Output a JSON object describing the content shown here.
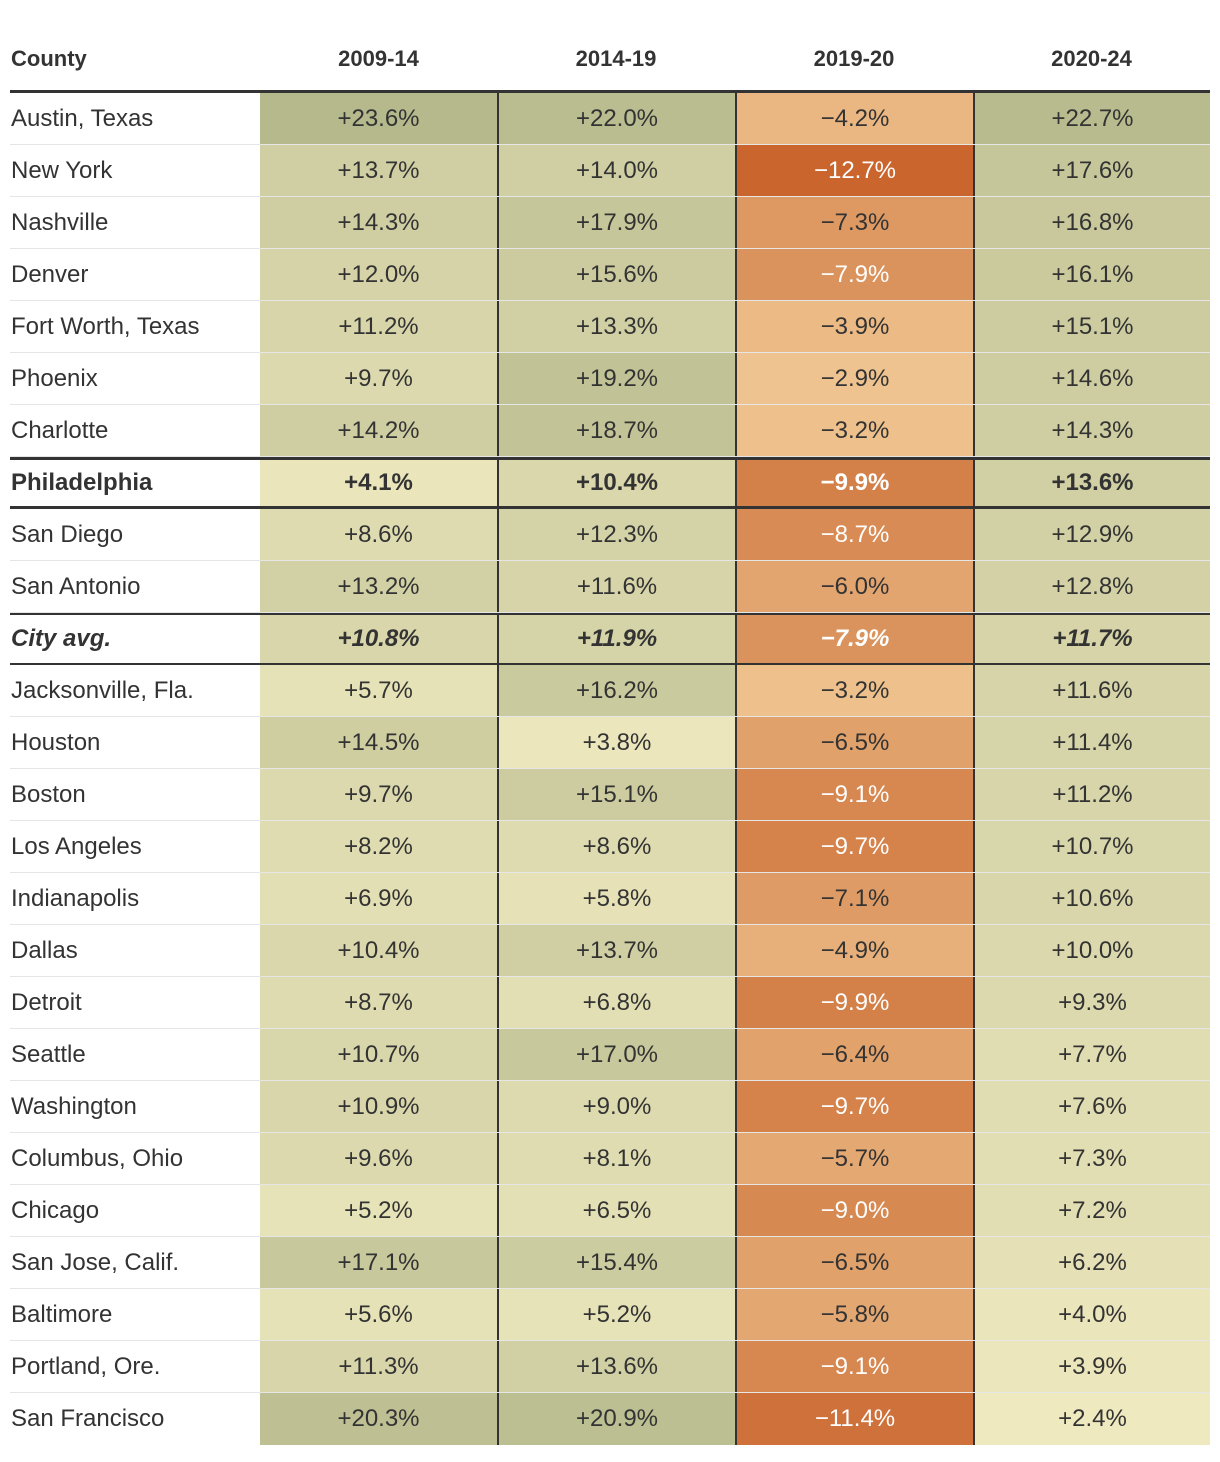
{
  "chart_data": {
    "type": "table",
    "columns": [
      "County",
      "2009-14",
      "2014-19",
      "2019-20",
      "2020-24"
    ],
    "rows": [
      {
        "name": "Austin, Texas",
        "values": [
          "+23.6%",
          "+22.0%",
          "−4.2%",
          "+22.7%"
        ],
        "numeric": [
          23.6,
          22.0,
          -4.2,
          22.7
        ]
      },
      {
        "name": "New York",
        "values": [
          "+13.7%",
          "+14.0%",
          "−12.7%",
          "+17.6%"
        ],
        "numeric": [
          13.7,
          14.0,
          -12.7,
          17.6
        ]
      },
      {
        "name": "Nashville",
        "values": [
          "+14.3%",
          "+17.9%",
          "−7.3%",
          "+16.8%"
        ],
        "numeric": [
          14.3,
          17.9,
          -7.3,
          16.8
        ]
      },
      {
        "name": "Denver",
        "values": [
          "+12.0%",
          "+15.6%",
          "−7.9%",
          "+16.1%"
        ],
        "numeric": [
          12.0,
          15.6,
          -7.9,
          16.1
        ]
      },
      {
        "name": "Fort Worth, Texas",
        "values": [
          "+11.2%",
          "+13.3%",
          "−3.9%",
          "+15.1%"
        ],
        "numeric": [
          11.2,
          13.3,
          -3.9,
          15.1
        ]
      },
      {
        "name": "Phoenix",
        "values": [
          "+9.7%",
          "+19.2%",
          "−2.9%",
          "+14.6%"
        ],
        "numeric": [
          9.7,
          19.2,
          -2.9,
          14.6
        ]
      },
      {
        "name": "Charlotte",
        "values": [
          "+14.2%",
          "+18.7%",
          "−3.2%",
          "+14.3%"
        ],
        "numeric": [
          14.2,
          18.7,
          -3.2,
          14.3
        ]
      },
      {
        "name": "Philadelphia",
        "values": [
          "+4.1%",
          "+10.4%",
          "−9.9%",
          "+13.6%"
        ],
        "numeric": [
          4.1,
          10.4,
          -9.9,
          13.6
        ],
        "style": "bold"
      },
      {
        "name": "San Diego",
        "values": [
          "+8.6%",
          "+12.3%",
          "−8.7%",
          "+12.9%"
        ],
        "numeric": [
          8.6,
          12.3,
          -8.7,
          12.9
        ]
      },
      {
        "name": "San Antonio",
        "values": [
          "+13.2%",
          "+11.6%",
          "−6.0%",
          "+12.8%"
        ],
        "numeric": [
          13.2,
          11.6,
          -6.0,
          12.8
        ]
      },
      {
        "name": "City avg.",
        "values": [
          "+10.8%",
          "+11.9%",
          "−7.9%",
          "+11.7%"
        ],
        "numeric": [
          10.8,
          11.9,
          -7.9,
          11.7
        ],
        "style": "italic"
      },
      {
        "name": "Jacksonville, Fla.",
        "values": [
          "+5.7%",
          "+16.2%",
          "−3.2%",
          "+11.6%"
        ],
        "numeric": [
          5.7,
          16.2,
          -3.2,
          11.6
        ]
      },
      {
        "name": "Houston",
        "values": [
          "+14.5%",
          "+3.8%",
          "−6.5%",
          "+11.4%"
        ],
        "numeric": [
          14.5,
          3.8,
          -6.5,
          11.4
        ]
      },
      {
        "name": "Boston",
        "values": [
          "+9.7%",
          "+15.1%",
          "−9.1%",
          "+11.2%"
        ],
        "numeric": [
          9.7,
          15.1,
          -9.1,
          11.2
        ]
      },
      {
        "name": "Los Angeles",
        "values": [
          "+8.2%",
          "+8.6%",
          "−9.7%",
          "+10.7%"
        ],
        "numeric": [
          8.2,
          8.6,
          -9.7,
          10.7
        ]
      },
      {
        "name": "Indianapolis",
        "values": [
          "+6.9%",
          "+5.8%",
          "−7.1%",
          "+10.6%"
        ],
        "numeric": [
          6.9,
          5.8,
          -7.1,
          10.6
        ]
      },
      {
        "name": "Dallas",
        "values": [
          "+10.4%",
          "+13.7%",
          "−4.9%",
          "+10.0%"
        ],
        "numeric": [
          10.4,
          13.7,
          -4.9,
          10.0
        ]
      },
      {
        "name": "Detroit",
        "values": [
          "+8.7%",
          "+6.8%",
          "−9.9%",
          "+9.3%"
        ],
        "numeric": [
          8.7,
          6.8,
          -9.9,
          9.3
        ]
      },
      {
        "name": "Seattle",
        "values": [
          "+10.7%",
          "+17.0%",
          "−6.4%",
          "+7.7%"
        ],
        "numeric": [
          10.7,
          17.0,
          -6.4,
          7.7
        ]
      },
      {
        "name": "Washington",
        "values": [
          "+10.9%",
          "+9.0%",
          "−9.7%",
          "+7.6%"
        ],
        "numeric": [
          10.9,
          9.0,
          -9.7,
          7.6
        ]
      },
      {
        "name": "Columbus, Ohio",
        "values": [
          "+9.6%",
          "+8.1%",
          "−5.7%",
          "+7.3%"
        ],
        "numeric": [
          9.6,
          8.1,
          -5.7,
          7.3
        ]
      },
      {
        "name": "Chicago",
        "values": [
          "+5.2%",
          "+6.5%",
          "−9.0%",
          "+7.2%"
        ],
        "numeric": [
          5.2,
          6.5,
          -9.0,
          7.2
        ]
      },
      {
        "name": "San Jose, Calif.",
        "values": [
          "+17.1%",
          "+15.4%",
          "−6.5%",
          "+6.2%"
        ],
        "numeric": [
          17.1,
          15.4,
          -6.5,
          6.2
        ]
      },
      {
        "name": "Baltimore",
        "values": [
          "+5.6%",
          "+5.2%",
          "−5.8%",
          "+4.0%"
        ],
        "numeric": [
          5.6,
          5.2,
          -5.8,
          4.0
        ]
      },
      {
        "name": "Portland, Ore.",
        "values": [
          "+11.3%",
          "+13.6%",
          "−9.1%",
          "+3.9%"
        ],
        "numeric": [
          11.3,
          13.6,
          -9.1,
          3.9
        ]
      },
      {
        "name": "San Francisco",
        "values": [
          "+20.3%",
          "+20.9%",
          "−11.4%",
          "+2.4%"
        ],
        "numeric": [
          20.3,
          20.9,
          -11.4,
          2.4
        ]
      }
    ],
    "color_scale": {
      "positive_low": "#f0eac0",
      "positive_high": "#b4b88a",
      "negative_low": "#f2cc98",
      "negative_high": "#c8622a",
      "positive_range": [
        2,
        24
      ],
      "negative_range": [
        2,
        13
      ],
      "text_dark": "#333333",
      "text_light": "#ffffff"
    }
  }
}
